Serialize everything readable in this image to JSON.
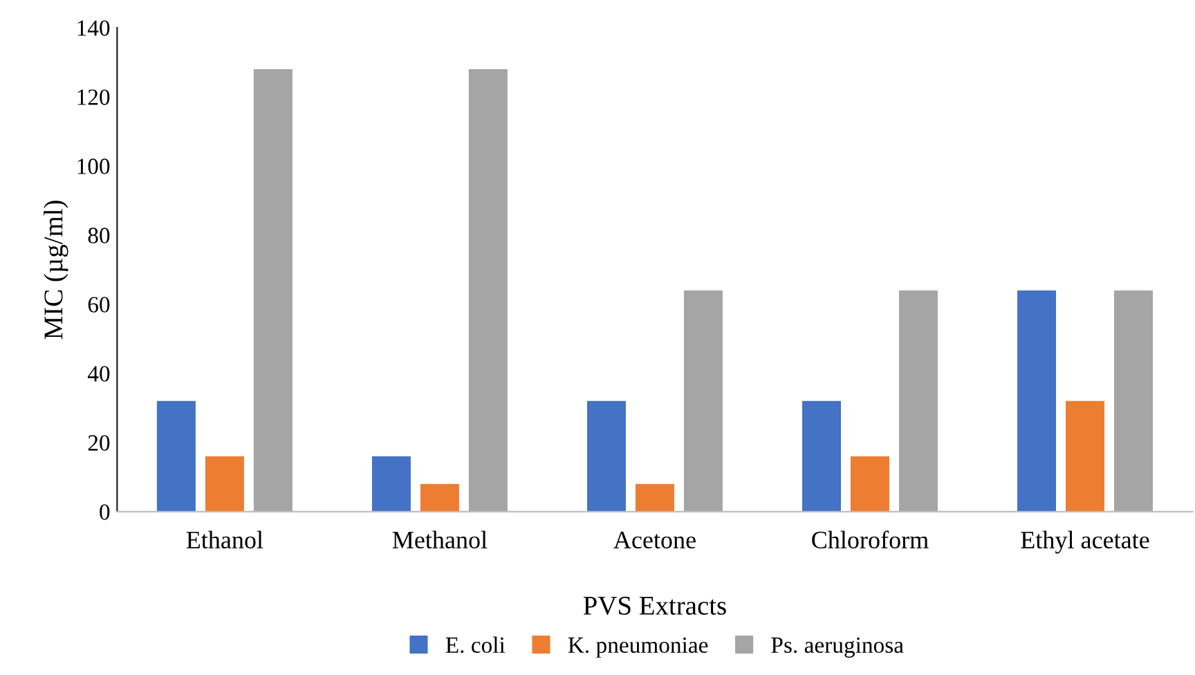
{
  "chart_data": {
    "type": "bar",
    "xlabel": "PVS Extracts",
    "ylabel": "MIC (µg/ml)",
    "categories": [
      "Ethanol",
      "Methanol",
      "Acetone",
      "Chloroform",
      "Ethyl acetate"
    ],
    "series": [
      {
        "name": "E. coli",
        "color": "#4472c4",
        "values": [
          32,
          16,
          32,
          32,
          64
        ]
      },
      {
        "name": "K. pneumoniae",
        "color": "#ed7d31",
        "values": [
          16,
          8,
          8,
          16,
          32
        ]
      },
      {
        "name": "Ps. aeruginosa",
        "color": "#a5a5a5",
        "values": [
          128,
          128,
          64,
          64,
          64
        ]
      }
    ],
    "ylim": [
      0,
      140
    ],
    "yticks": [
      0,
      20,
      40,
      60,
      80,
      100,
      120,
      140
    ],
    "grid": false,
    "legend": "bottom"
  }
}
